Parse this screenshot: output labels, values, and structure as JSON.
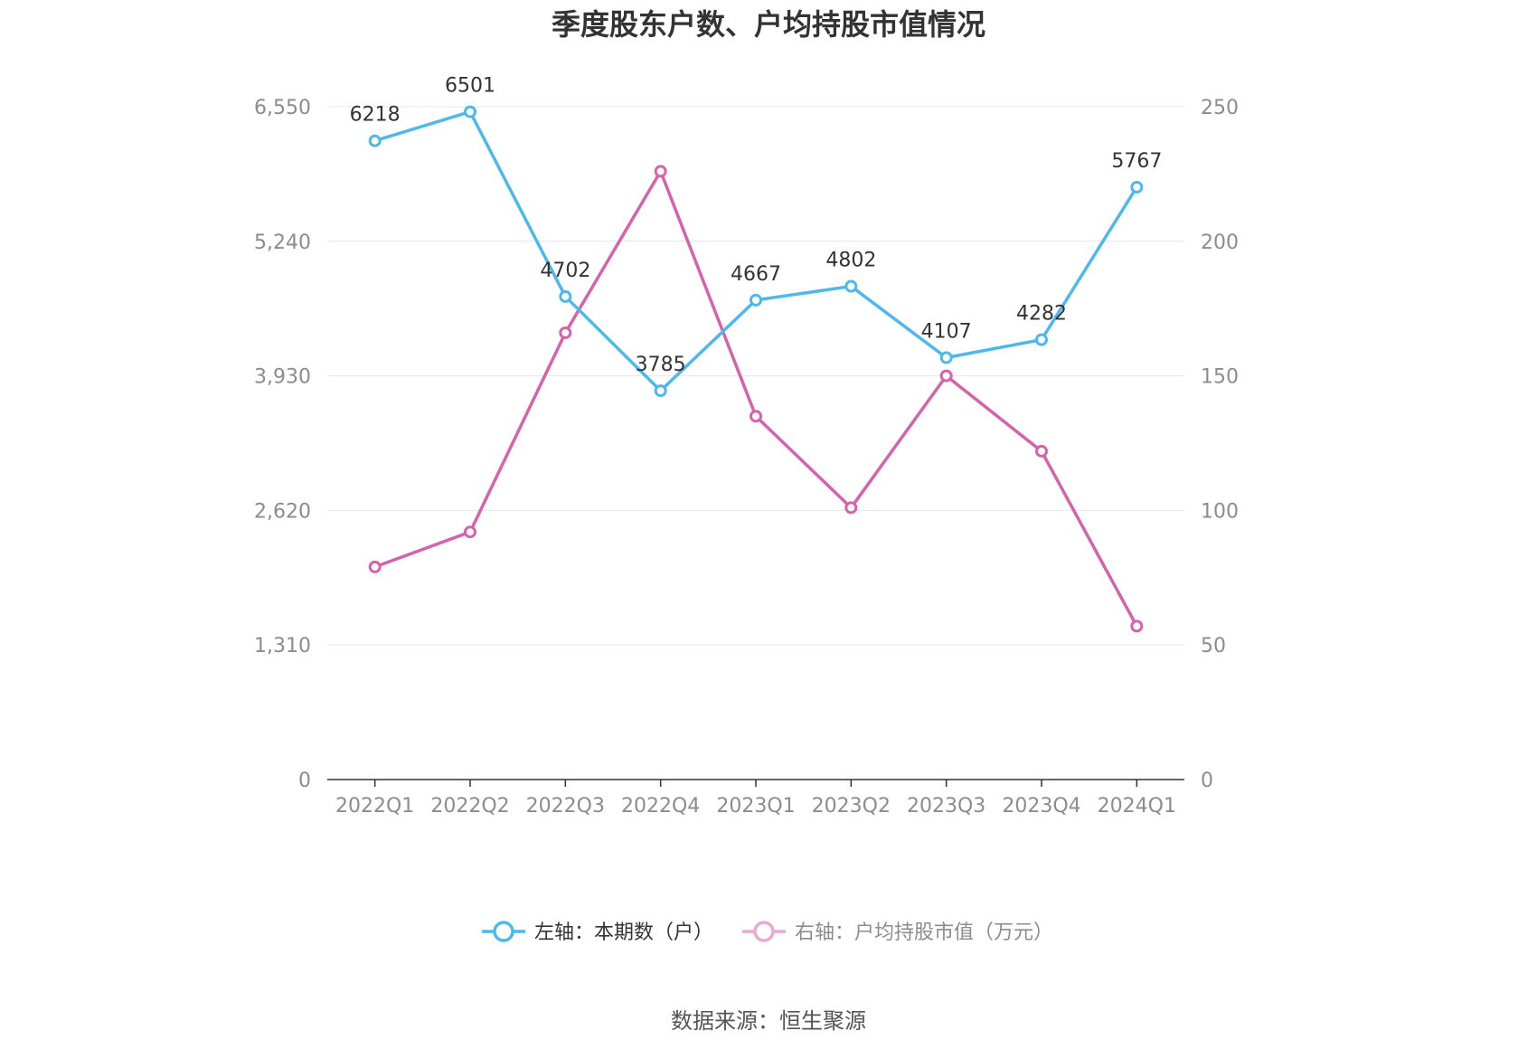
{
  "chart_data": {
    "type": "line",
    "title": "季度股东户数、户均持股市值情况",
    "categories": [
      "2022Q1",
      "2022Q2",
      "2022Q3",
      "2022Q4",
      "2023Q1",
      "2023Q2",
      "2023Q3",
      "2023Q4",
      "2024Q1"
    ],
    "left_axis": {
      "ticks": [
        0,
        1310,
        2620,
        3930,
        5240,
        6550
      ],
      "tick_labels": [
        "0",
        "1,310",
        "2,620",
        "3,930",
        "5,240",
        "6,550"
      ],
      "ylim": [
        0,
        6550
      ]
    },
    "right_axis": {
      "ticks": [
        0,
        50,
        100,
        150,
        200,
        250
      ],
      "tick_labels": [
        "0",
        "50",
        "100",
        "150",
        "200",
        "250"
      ],
      "ylim": [
        0,
        250
      ]
    },
    "series": [
      {
        "name": "左轴：本期数（户）",
        "axis": "left",
        "color": "#4db8ec",
        "values": [
          6218,
          6501,
          4702,
          3785,
          4667,
          4802,
          4107,
          4282,
          5767
        ],
        "show_labels": true
      },
      {
        "name": "右轴：户均持股市值（万元）",
        "axis": "right",
        "color": "#d463ac",
        "legend_color": "#e9a9d3",
        "values": [
          79,
          92,
          166,
          226,
          135,
          101,
          150,
          122,
          57
        ],
        "show_labels": false
      }
    ],
    "grid": true,
    "legend_position": "bottom"
  },
  "footer": {
    "source": "数据来源：恒生聚源"
  }
}
